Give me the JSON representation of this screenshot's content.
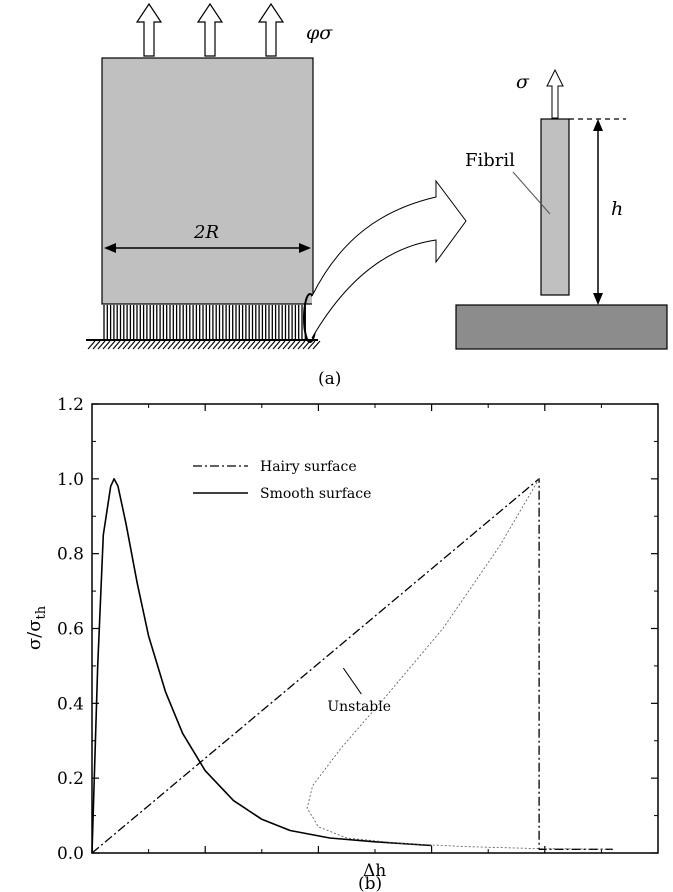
{
  "panel_a": {
    "labels": {
      "phi_sigma": "φσ",
      "two_r": "2R",
      "sigma": "σ",
      "fibril": "Fibril",
      "h": "h"
    },
    "caption": "(a)"
  },
  "panel_b": {
    "caption": "(b)",
    "legend": {
      "hairy": "Hairy surface",
      "smooth": "Smooth surface"
    },
    "annotation": "Unstable",
    "xlabel": "Δh",
    "ylabel_main": "σ/σ",
    "ylabel_sub": "th"
  },
  "chart_data": {
    "type": "line",
    "title": "",
    "xlabel": "Δh",
    "ylabel": "σ/σth",
    "ylim": [
      0,
      1.2
    ],
    "xlim": [
      0,
      1
    ],
    "y_ticks": [
      "0.0",
      "0.2",
      "0.4",
      "0.6",
      "0.8",
      "1.0",
      "1.2"
    ],
    "x_ticks_labeled": false,
    "grid": false,
    "legend_position": "upper-center",
    "series": [
      {
        "name": "Hairy surface",
        "style": "dash-dot",
        "points": [
          [
            0,
            0
          ],
          [
            0.79,
            1.0
          ],
          [
            0.79,
            0.01
          ],
          [
            0.92,
            0.01
          ]
        ]
      },
      {
        "name": "Smooth surface",
        "style": "solid",
        "points": [
          [
            0,
            0
          ],
          [
            0.01,
            0.5
          ],
          [
            0.02,
            0.85
          ],
          [
            0.033,
            0.98
          ],
          [
            0.039,
            1.0
          ],
          [
            0.046,
            0.98
          ],
          [
            0.06,
            0.88
          ],
          [
            0.08,
            0.72
          ],
          [
            0.1,
            0.58
          ],
          [
            0.13,
            0.43
          ],
          [
            0.16,
            0.32
          ],
          [
            0.2,
            0.22
          ],
          [
            0.25,
            0.14
          ],
          [
            0.3,
            0.09
          ],
          [
            0.35,
            0.06
          ],
          [
            0.42,
            0.04
          ],
          [
            0.5,
            0.03
          ],
          [
            0.6,
            0.02
          ]
        ]
      },
      {
        "name": "Unstable",
        "style": "dotted",
        "points": [
          [
            0.79,
            1.0
          ],
          [
            0.72,
            0.82
          ],
          [
            0.62,
            0.6
          ],
          [
            0.52,
            0.42
          ],
          [
            0.44,
            0.28
          ],
          [
            0.39,
            0.18
          ],
          [
            0.38,
            0.12
          ],
          [
            0.4,
            0.07
          ],
          [
            0.45,
            0.04
          ],
          [
            0.55,
            0.025
          ],
          [
            0.66,
            0.017
          ],
          [
            0.78,
            0.012
          ],
          [
            0.92,
            0.01
          ]
        ]
      }
    ],
    "annotations": [
      {
        "text": "Unstable",
        "x": 0.49,
        "y": 0.39
      }
    ]
  }
}
